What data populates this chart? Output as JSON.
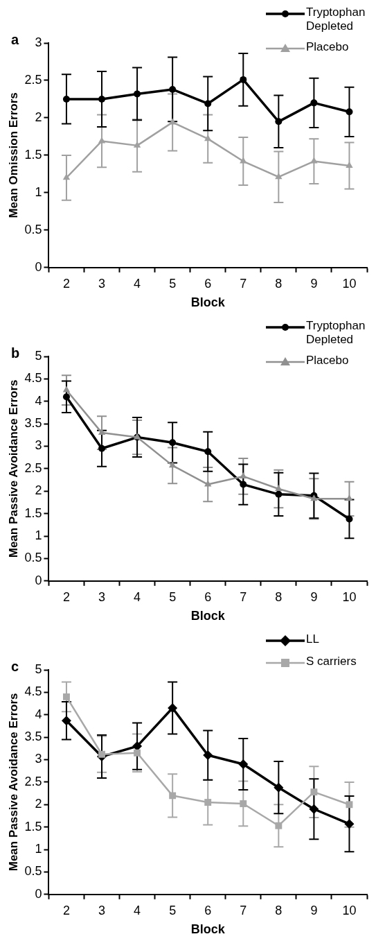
{
  "chart_data": [
    {
      "type": "line",
      "title": "a",
      "xlabel": "Block",
      "ylabel": "Mean Omission Errors",
      "categories": [
        "2",
        "3",
        "4",
        "5",
        "6",
        "7",
        "8",
        "9",
        "10"
      ],
      "ylim": [
        0,
        3
      ],
      "yticks": [
        0,
        0.5,
        1,
        1.5,
        2,
        2.5,
        3
      ],
      "grid": false,
      "legend": "top right",
      "series": [
        {
          "name": "Tryptophan Depleted",
          "color": "#000000",
          "marker": "circle",
          "values": [
            2.25,
            2.25,
            2.32,
            2.38,
            2.19,
            2.51,
            1.95,
            2.2,
            2.08
          ],
          "errors": [
            0.33,
            0.37,
            0.35,
            0.43,
            0.36,
            0.35,
            0.35,
            0.33,
            0.33
          ]
        },
        {
          "name": "Placebo",
          "color": "#a0a0a0",
          "marker": "triangle",
          "values": [
            1.2,
            1.69,
            1.63,
            1.94,
            1.72,
            1.42,
            1.21,
            1.42,
            1.36
          ],
          "errors": [
            0.3,
            0.35,
            0.35,
            0.38,
            0.32,
            0.32,
            0.34,
            0.3,
            0.31
          ]
        }
      ]
    },
    {
      "type": "line",
      "title": "b",
      "xlabel": "Block",
      "ylabel": "Mean Passive Avoidance Errors",
      "categories": [
        "2",
        "3",
        "4",
        "5",
        "6",
        "7",
        "8",
        "9",
        "10"
      ],
      "ylim": [
        0,
        5
      ],
      "yticks": [
        0,
        0.5,
        1,
        1.5,
        2,
        2.5,
        3,
        3.5,
        4,
        4.5,
        5
      ],
      "grid": false,
      "legend": "top right",
      "series": [
        {
          "name": "Tryptophan Depleted",
          "color": "#000000",
          "marker": "circle",
          "values": [
            4.1,
            2.95,
            3.2,
            3.08,
            2.88,
            2.15,
            1.93,
            1.9,
            1.38
          ],
          "errors": [
            0.35,
            0.4,
            0.44,
            0.45,
            0.44,
            0.45,
            0.48,
            0.5,
            0.43
          ]
        },
        {
          "name": "Placebo",
          "color": "#909090",
          "marker": "triangle",
          "values": [
            4.25,
            3.3,
            3.2,
            2.57,
            2.15,
            2.33,
            2.05,
            1.83,
            1.83
          ],
          "errors": [
            0.33,
            0.37,
            0.38,
            0.4,
            0.38,
            0.4,
            0.42,
            0.45,
            0.38
          ]
        }
      ]
    },
    {
      "type": "line",
      "title": "c",
      "xlabel": "Block",
      "ylabel": "Mean Passive Avoidance Errors",
      "categories": [
        "2",
        "3",
        "4",
        "5",
        "6",
        "7",
        "8",
        "9",
        "10"
      ],
      "ylim": [
        0,
        5
      ],
      "yticks": [
        0,
        0.5,
        1,
        1.5,
        2,
        2.5,
        3,
        3.5,
        4,
        4.5,
        5
      ],
      "grid": false,
      "legend": "top right",
      "series": [
        {
          "name": "LL",
          "color": "#000000",
          "marker": "diamond",
          "values": [
            3.87,
            3.07,
            3.3,
            4.15,
            3.1,
            2.9,
            2.38,
            1.9,
            1.57
          ],
          "errors": [
            0.42,
            0.48,
            0.52,
            0.58,
            0.55,
            0.57,
            0.58,
            0.67,
            0.62
          ]
        },
        {
          "name": "S carriers",
          "color": "#a8a8a8",
          "marker": "square",
          "values": [
            4.4,
            3.12,
            3.15,
            2.2,
            2.05,
            2.02,
            1.53,
            2.28,
            2.0
          ],
          "errors": [
            0.33,
            0.4,
            0.42,
            0.48,
            0.5,
            0.5,
            0.47,
            0.57,
            0.5
          ]
        }
      ]
    }
  ]
}
